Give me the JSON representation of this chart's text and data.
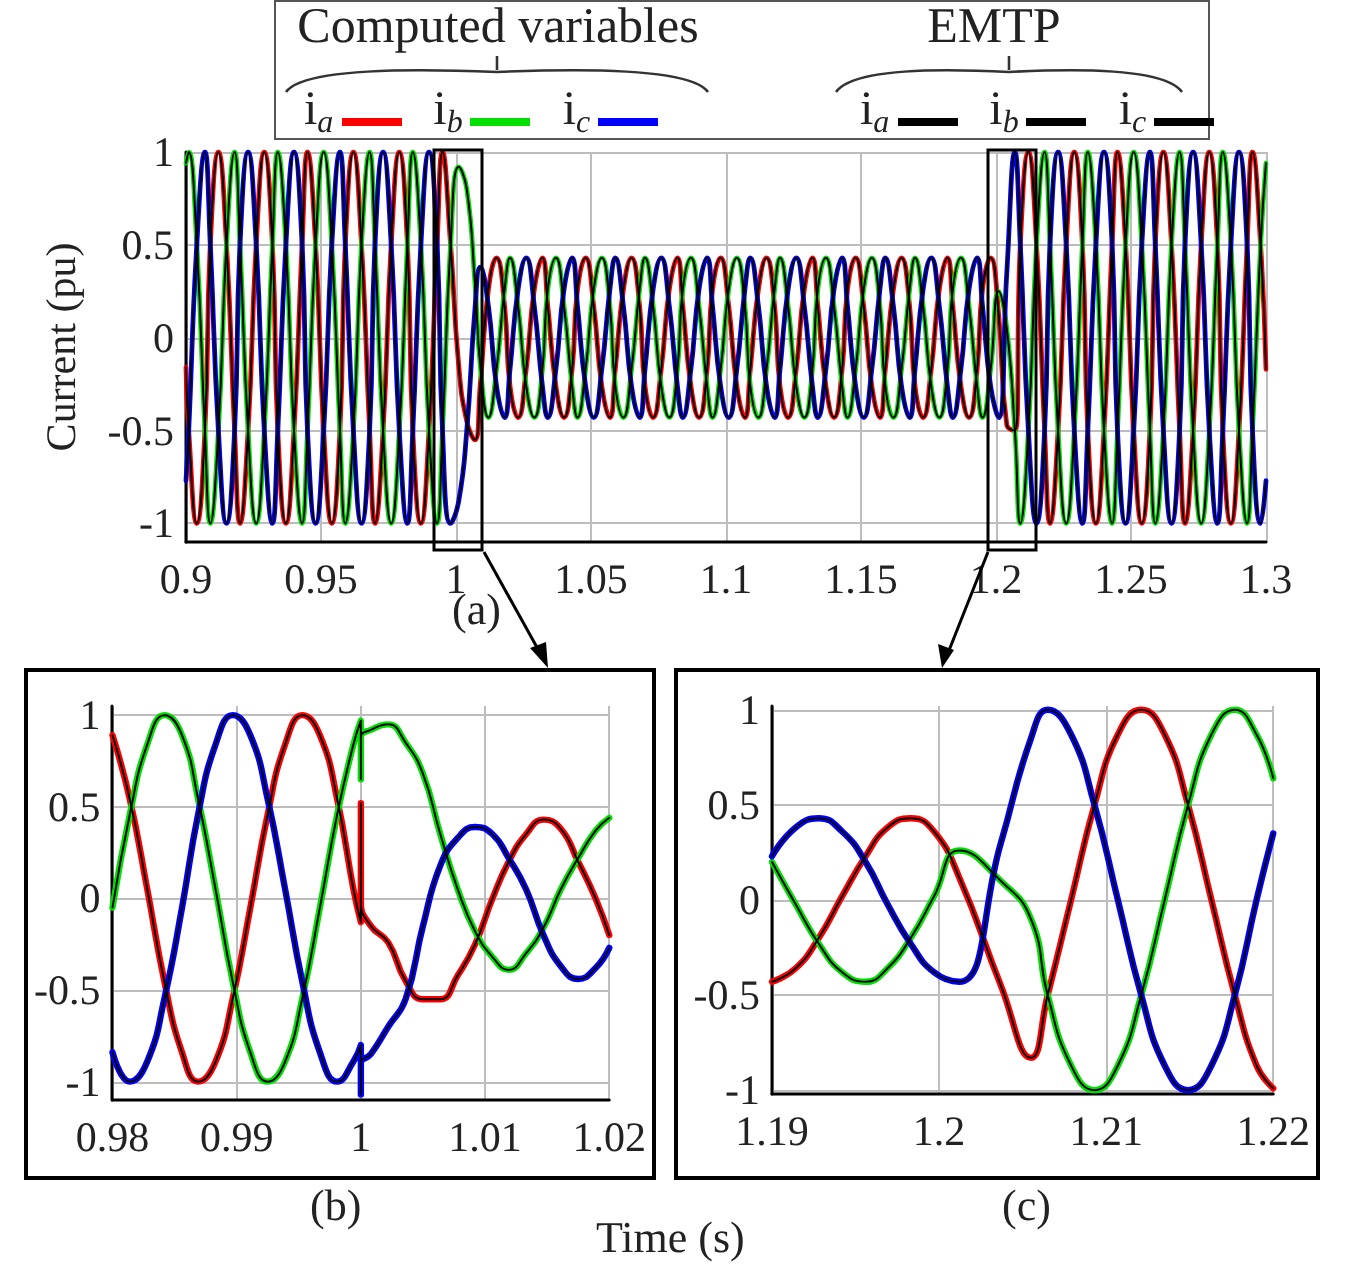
{
  "chart_data": [
    {
      "type": "line",
      "ylabel": "Current (pu)",
      "annotations": [
        "Computed variables",
        "EMTP",
        "(a)"
      ],
      "legend": "top",
      "grid": true,
      "xlim": [
        0.9,
        1.3
      ],
      "ylim": [
        -1.1,
        1
      ],
      "xticks": [
        0.9,
        0.95,
        1,
        1.05,
        1.1,
        1.15,
        1.2,
        1.25,
        1.3
      ],
      "yticks": [
        -1,
        -0.5,
        0,
        0.5,
        1
      ],
      "x": [
        0.9,
        0.901,
        0.904,
        0.907,
        0.909,
        0.912,
        0.915,
        0.918,
        0.92,
        0.923,
        0.926,
        0.929,
        0.932,
        0.934,
        0.937,
        0.94,
        0.943,
        0.945,
        0.948,
        0.951,
        0.954,
        0.957,
        0.959,
        0.962,
        0.965,
        0.968,
        0.97,
        0.973,
        0.976,
        0.979,
        0.982,
        0.984,
        0.987,
        0.99,
        0.993,
        0.995,
        0.998,
        1.001,
        1.004,
        1.007,
        1.009,
        1.012,
        1.015,
        1.018,
        1.02,
        1.023,
        1.026,
        1.029,
        1.032,
        1.034,
        1.037,
        1.04,
        1.043,
        1.045,
        1.048,
        1.051,
        1.054,
        1.057,
        1.059,
        1.062,
        1.065,
        1.068,
        1.07,
        1.073,
        1.076,
        1.079,
        1.082,
        1.084,
        1.087,
        1.09,
        1.093,
        1.095,
        1.098,
        1.101,
        1.104,
        1.107,
        1.109,
        1.112,
        1.115,
        1.118,
        1.12,
        1.123,
        1.126,
        1.129,
        1.132,
        1.134,
        1.137,
        1.14,
        1.143,
        1.145,
        1.148,
        1.151,
        1.154,
        1.157,
        1.159,
        1.162,
        1.165,
        1.168,
        1.17,
        1.173,
        1.176,
        1.179,
        1.182,
        1.184,
        1.187,
        1.19,
        1.193,
        1.195,
        1.198,
        1.201,
        1.204,
        1.207,
        1.209,
        1.212,
        1.215,
        1.218,
        1.22,
        1.223,
        1.226,
        1.229,
        1.232,
        1.234,
        1.237,
        1.24,
        1.243,
        1.245,
        1.248,
        1.251,
        1.254,
        1.257,
        1.259,
        1.262,
        1.265,
        1.268,
        1.27,
        1.273,
        1.276,
        1.279,
        1.282,
        1.284,
        1.287,
        1.29,
        1.293,
        1.295,
        1.298,
        1.3
      ],
      "series": [
        {
          "name": "i$_{a}$",
          "color": "#ff0000",
          "values": [
            -0.16,
            -0.5,
            -1,
            -0.5,
            0.5,
            1,
            0.5,
            -0.5,
            -1,
            -0.5,
            0.5,
            1,
            0.5,
            -0.5,
            -1,
            -0.5,
            0.5,
            1,
            0.5,
            -0.5,
            -1,
            -0.5,
            0.5,
            1,
            0.5,
            -0.5,
            -1,
            -0.5,
            0.5,
            1,
            0.5,
            -0.5,
            -1,
            -0.5,
            0.5,
            1,
            0.5,
            -0.15,
            -0.45,
            -0.55,
            -0.25,
            0.26,
            0.43,
            0.17,
            -0.26,
            -0.43,
            -0.17,
            0.26,
            0.43,
            0.17,
            -0.26,
            -0.43,
            -0.17,
            0.26,
            0.43,
            0.17,
            -0.26,
            -0.43,
            -0.17,
            0.26,
            0.43,
            0.17,
            -0.26,
            -0.43,
            -0.17,
            0.26,
            0.43,
            0.17,
            -0.26,
            -0.43,
            -0.17,
            0.26,
            0.43,
            0.17,
            -0.26,
            -0.43,
            -0.17,
            0.26,
            0.43,
            0.17,
            -0.26,
            -0.43,
            -0.17,
            0.26,
            0.43,
            0.17,
            -0.26,
            -0.43,
            -0.17,
            0.26,
            0.43,
            0.17,
            -0.26,
            -0.43,
            -0.17,
            0.26,
            0.43,
            0.17,
            -0.26,
            -0.43,
            -0.17,
            0.26,
            0.43,
            0.17,
            -0.26,
            -0.43,
            -0.17,
            0.26,
            0.43,
            0.12,
            -0.47,
            -0.5,
            0.5,
            1,
            0.5,
            -0.5,
            -1,
            -0.5,
            0.5,
            1,
            0.5,
            -0.5,
            -1,
            -0.5,
            0.5,
            1,
            0.5,
            -0.5,
            -1,
            -0.5,
            0.5,
            1,
            0.5,
            -0.5,
            -1,
            -0.5,
            0.5,
            1,
            0.5,
            -0.5,
            -1,
            -0.5,
            0.5,
            1,
            0.5,
            -0.17
          ]
        },
        {
          "name": "i$_{b}$",
          "color": "#00e000",
          "values": [
            0.94,
            1,
            0.5,
            -0.5,
            -1,
            -0.5,
            0.5,
            1,
            0.5,
            -0.5,
            -1,
            -0.5,
            0.5,
            1,
            0.5,
            -0.5,
            -1,
            -0.5,
            0.5,
            1,
            0.5,
            -0.5,
            -1,
            -0.5,
            0.5,
            1,
            0.5,
            -0.5,
            -1,
            -0.5,
            0.5,
            1,
            0.5,
            -0.5,
            -1,
            -0.5,
            0.5,
            0.92,
            0.8,
            0.3,
            -0.15,
            -0.43,
            -0.17,
            0.26,
            0.43,
            0.17,
            -0.26,
            -0.43,
            -0.17,
            0.26,
            0.43,
            0.17,
            -0.26,
            -0.43,
            -0.17,
            0.26,
            0.43,
            0.17,
            -0.26,
            -0.43,
            -0.17,
            0.26,
            0.43,
            0.17,
            -0.26,
            -0.43,
            -0.17,
            0.26,
            0.43,
            0.17,
            -0.26,
            -0.43,
            -0.17,
            0.26,
            0.43,
            0.17,
            -0.26,
            -0.43,
            -0.17,
            0.26,
            0.43,
            0.17,
            -0.26,
            -0.43,
            -0.17,
            0.26,
            0.43,
            0.17,
            -0.26,
            -0.43,
            -0.17,
            0.26,
            0.43,
            0.17,
            -0.26,
            -0.43,
            -0.17,
            0.26,
            0.43,
            0.17,
            -0.26,
            -0.43,
            -0.17,
            0.26,
            0.43,
            0.17,
            -0.26,
            -0.43,
            -0.17,
            0.25,
            0.05,
            -0.5,
            -1,
            -0.5,
            0.5,
            1,
            0.5,
            -0.5,
            -1,
            -0.5,
            0.5,
            1,
            0.5,
            -0.5,
            -1,
            -0.5,
            0.5,
            1,
            0.5,
            -0.5,
            -1,
            -0.5,
            0.5,
            1,
            0.5,
            -0.5,
            -1,
            -0.5,
            0.5,
            1,
            0.5,
            -0.5,
            -1,
            -0.5,
            0.5,
            0.94
          ]
        },
        {
          "name": "i$_{c}$",
          "color": "#0000ff",
          "values": [
            -0.77,
            -0.5,
            0.5,
            1,
            0.5,
            -0.5,
            -1,
            -0.5,
            0.5,
            1,
            0.5,
            -0.5,
            -1,
            -0.5,
            0.5,
            1,
            0.5,
            -0.5,
            -1,
            -0.5,
            0.5,
            1,
            0.5,
            -0.5,
            -1,
            -0.5,
            0.5,
            1,
            0.5,
            -0.5,
            -1,
            -0.5,
            0.5,
            1,
            0.5,
            -0.5,
            -1,
            -0.88,
            -0.5,
            0.15,
            0.38,
            0.17,
            -0.26,
            -0.43,
            -0.17,
            0.26,
            0.43,
            0.17,
            -0.26,
            -0.43,
            -0.17,
            0.26,
            0.43,
            0.17,
            -0.26,
            -0.43,
            -0.17,
            0.26,
            0.43,
            0.17,
            -0.26,
            -0.43,
            -0.17,
            0.26,
            0.43,
            0.17,
            -0.26,
            -0.43,
            -0.17,
            0.26,
            0.43,
            0.17,
            -0.26,
            -0.43,
            -0.17,
            0.26,
            0.43,
            0.17,
            -0.26,
            -0.43,
            -0.17,
            0.26,
            0.43,
            0.17,
            -0.26,
            -0.43,
            -0.17,
            0.26,
            0.43,
            0.17,
            -0.26,
            -0.43,
            -0.17,
            0.26,
            0.43,
            0.17,
            -0.26,
            -0.43,
            -0.17,
            0.26,
            0.43,
            0.17,
            -0.26,
            -0.43,
            -0.17,
            0.26,
            0.43,
            0.17,
            -0.26,
            -0.43,
            0.35,
            1,
            0.5,
            -0.5,
            -1,
            -0.5,
            0.5,
            1,
            0.5,
            -0.5,
            -1,
            -0.5,
            0.5,
            1,
            0.5,
            -0.5,
            -1,
            -0.5,
            0.5,
            1,
            0.5,
            -0.5,
            -1,
            -0.5,
            0.5,
            1,
            0.5,
            -0.5,
            -1,
            -0.5,
            0.5,
            1,
            0.5,
            -0.5,
            -1,
            -0.77
          ]
        },
        {
          "name": "i$_{a}$",
          "color": "#000000",
          "values": [
            -0.16,
            -0.5,
            -1,
            -0.5,
            0.5,
            1,
            0.5,
            -0.5,
            -1,
            -0.5,
            0.5,
            1,
            0.5,
            -0.5,
            -1,
            -0.5,
            0.5,
            1,
            0.5,
            -0.5,
            -1,
            -0.5,
            0.5,
            1,
            0.5,
            -0.5,
            -1,
            -0.5,
            0.5,
            1,
            0.5,
            -0.5,
            -1,
            -0.5,
            0.5,
            1,
            0.5,
            -0.15,
            -0.45,
            -0.55,
            -0.25,
            0.26,
            0.43,
            0.17,
            -0.26,
            -0.43,
            -0.17,
            0.26,
            0.43,
            0.17,
            -0.26,
            -0.43,
            -0.17,
            0.26,
            0.43,
            0.17,
            -0.26,
            -0.43,
            -0.17,
            0.26,
            0.43,
            0.17,
            -0.26,
            -0.43,
            -0.17,
            0.26,
            0.43,
            0.17,
            -0.26,
            -0.43,
            -0.17,
            0.26,
            0.43,
            0.17,
            -0.26,
            -0.43,
            -0.17,
            0.26,
            0.43,
            0.17,
            -0.26,
            -0.43,
            -0.17,
            0.26,
            0.43,
            0.17,
            -0.26,
            -0.43,
            -0.17,
            0.26,
            0.43,
            0.17,
            -0.26,
            -0.43,
            -0.17,
            0.26,
            0.43,
            0.17,
            -0.26,
            -0.43,
            -0.17,
            0.26,
            0.43,
            0.17,
            -0.26,
            -0.43,
            -0.17,
            0.26,
            0.43,
            0.12,
            -0.47,
            -0.5,
            0.5,
            1,
            0.5,
            -0.5,
            -1,
            -0.5,
            0.5,
            1,
            0.5,
            -0.5,
            -1,
            -0.5,
            0.5,
            1,
            0.5,
            -0.5,
            -1,
            -0.5,
            0.5,
            1,
            0.5,
            -0.5,
            -1,
            -0.5,
            0.5,
            1,
            0.5,
            -0.5,
            -1,
            -0.5,
            0.5,
            1,
            0.5,
            -0.17
          ]
        },
        {
          "name": "i$_{b}$",
          "color": "#000000",
          "values": [
            0.94,
            1,
            0.5,
            -0.5,
            -1,
            -0.5,
            0.5,
            1,
            0.5,
            -0.5,
            -1,
            -0.5,
            0.5,
            1,
            0.5,
            -0.5,
            -1,
            -0.5,
            0.5,
            1,
            0.5,
            -0.5,
            -1,
            -0.5,
            0.5,
            1,
            0.5,
            -0.5,
            -1,
            -0.5,
            0.5,
            1,
            0.5,
            -0.5,
            -1,
            -0.5,
            0.5,
            0.92,
            0.8,
            0.3,
            -0.15,
            -0.43,
            -0.17,
            0.26,
            0.43,
            0.17,
            -0.26,
            -0.43,
            -0.17,
            0.26,
            0.43,
            0.17,
            -0.26,
            -0.43,
            -0.17,
            0.26,
            0.43,
            0.17,
            -0.26,
            -0.43,
            -0.17,
            0.26,
            0.43,
            0.17,
            -0.26,
            -0.43,
            -0.17,
            0.26,
            0.43,
            0.17,
            -0.26,
            -0.43,
            -0.17,
            0.26,
            0.43,
            0.17,
            -0.26,
            -0.43,
            -0.17,
            0.26,
            0.43,
            0.17,
            -0.26,
            -0.43,
            -0.17,
            0.26,
            0.43,
            0.17,
            -0.26,
            -0.43,
            -0.17,
            0.26,
            0.43,
            0.17,
            -0.26,
            -0.43,
            -0.17,
            0.26,
            0.43,
            0.17,
            -0.26,
            -0.43,
            -0.17,
            0.26,
            0.43,
            0.17,
            -0.26,
            -0.43,
            -0.17,
            0.25,
            0.05,
            -0.5,
            -1,
            -0.5,
            0.5,
            1,
            0.5,
            -0.5,
            -1,
            -0.5,
            0.5,
            1,
            0.5,
            -0.5,
            -1,
            -0.5,
            0.5,
            1,
            0.5,
            -0.5,
            -1,
            -0.5,
            0.5,
            1,
            0.5,
            -0.5,
            -1,
            -0.5,
            0.5,
            1,
            0.5,
            -0.5,
            -1,
            -0.5,
            0.5,
            0.94
          ]
        },
        {
          "name": "i$_{c}$",
          "color": "#000000",
          "values": [
            -0.77,
            -0.5,
            0.5,
            1,
            0.5,
            -0.5,
            -1,
            -0.5,
            0.5,
            1,
            0.5,
            -0.5,
            -1,
            -0.5,
            0.5,
            1,
            0.5,
            -0.5,
            -1,
            -0.5,
            0.5,
            1,
            0.5,
            -0.5,
            -1,
            -0.5,
            0.5,
            1,
            0.5,
            -0.5,
            -1,
            -0.5,
            0.5,
            1,
            0.5,
            -0.5,
            -1,
            -0.88,
            -0.5,
            0.15,
            0.38,
            0.17,
            -0.26,
            -0.43,
            -0.17,
            0.26,
            0.43,
            0.17,
            -0.26,
            -0.43,
            -0.17,
            0.26,
            0.43,
            0.17,
            -0.26,
            -0.43,
            -0.17,
            0.26,
            0.43,
            0.17,
            -0.26,
            -0.43,
            -0.17,
            0.26,
            0.43,
            0.17,
            -0.26,
            -0.43,
            -0.17,
            0.26,
            0.43,
            0.17,
            -0.26,
            -0.43,
            -0.17,
            0.26,
            0.43,
            0.17,
            -0.26,
            -0.43,
            -0.17,
            0.26,
            0.43,
            0.17,
            -0.26,
            -0.43,
            -0.17,
            0.26,
            0.43,
            0.17,
            -0.26,
            -0.43,
            -0.17,
            0.26,
            0.43,
            0.17,
            -0.26,
            -0.43,
            -0.17,
            0.26,
            0.43,
            0.17,
            -0.26,
            -0.43,
            -0.17,
            0.26,
            0.43,
            0.17,
            -0.26,
            -0.43,
            0.35,
            1,
            0.5,
            -0.5,
            -1,
            -0.5,
            0.5,
            1,
            0.5,
            -0.5,
            -1,
            -0.5,
            0.5,
            1,
            0.5,
            -0.5,
            -1,
            -0.5,
            0.5,
            1,
            0.5,
            -0.5,
            -1,
            -0.5,
            0.5,
            1,
            0.5,
            -0.5,
            -1,
            -0.5,
            0.5,
            1,
            0.5,
            -0.5,
            -1,
            -0.77
          ]
        }
      ]
    },
    {
      "type": "line",
      "xlabel": "Time (s)",
      "annotations": [
        "(b)"
      ],
      "grid": true,
      "xlim": [
        0.98,
        1.02
      ],
      "ylim": [
        -1.1,
        1.05
      ],
      "xticks": [
        0.98,
        0.99,
        1,
        1.01,
        1.02
      ],
      "yticks": [
        -1,
        -0.5,
        0,
        0.5,
        1
      ],
      "x": [
        0.98,
        0.9814,
        0.9828,
        0.9842,
        0.9856,
        0.9869,
        0.9883,
        0.9897,
        0.9911,
        0.9925,
        0.9939,
        0.9953,
        0.9967,
        0.9981,
        0.9994,
        1,
        1,
        1,
        1.0008,
        1.0022,
        1.0036,
        1.005,
        1.0064,
        1.0078,
        1.0092,
        1.0106,
        1.0119,
        1.0133,
        1.0147,
        1.0161,
        1.0175,
        1.0189,
        1.02
      ],
      "series": [
        {
          "color": "#ff0000",
          "values": [
            0.89,
            0.54,
            0.05,
            -0.46,
            -0.84,
            -1,
            -0.89,
            -0.54,
            -0.05,
            0.46,
            0.84,
            1,
            0.89,
            0.54,
            0.05,
            -0.13,
            0.52,
            -0.02,
            -0.15,
            -0.24,
            -0.45,
            -0.55,
            -0.55,
            -0.42,
            -0.25,
            0,
            0.2,
            0.35,
            0.43,
            0.38,
            0.2,
            0,
            -0.2
          ]
        },
        {
          "color": "#00e000",
          "values": [
            -0.05,
            0.46,
            0.84,
            1,
            0.89,
            0.54,
            0.05,
            -0.46,
            -0.84,
            -1,
            -0.89,
            -0.54,
            -0.05,
            0.46,
            0.84,
            0.97,
            0.65,
            0.88,
            0.92,
            0.95,
            0.85,
            0.68,
            0.35,
            0.05,
            -0.18,
            -0.32,
            -0.39,
            -0.3,
            -0.16,
            0.05,
            0.22,
            0.37,
            0.44
          ]
        },
        {
          "color": "#0000ff",
          "values": [
            -0.84,
            -1,
            -0.89,
            -0.54,
            -0.05,
            0.46,
            0.84,
            1,
            0.89,
            0.54,
            0.05,
            -0.46,
            -0.84,
            -1,
            -0.89,
            -0.8,
            -1.07,
            -0.9,
            -0.85,
            -0.7,
            -0.55,
            -0.15,
            0.18,
            0.33,
            0.39,
            0.35,
            0.22,
            0.05,
            -0.2,
            -0.37,
            -0.44,
            -0.38,
            -0.27
          ]
        },
        {
          "color": "#000000",
          "values": [
            0.89,
            0.54,
            0.05,
            -0.46,
            -0.84,
            -1,
            -0.89,
            -0.54,
            -0.05,
            0.46,
            0.84,
            1,
            0.89,
            0.54,
            0.05,
            -0.13,
            0.52,
            -0.02,
            -0.15,
            -0.24,
            -0.45,
            -0.55,
            -0.55,
            -0.42,
            -0.25,
            0,
            0.2,
            0.35,
            0.43,
            0.38,
            0.2,
            0,
            -0.2
          ]
        },
        {
          "color": "#000000",
          "values": [
            -0.05,
            0.46,
            0.84,
            1,
            0.89,
            0.54,
            0.05,
            -0.46,
            -0.84,
            -1,
            -0.89,
            -0.54,
            -0.05,
            0.46,
            0.84,
            0.97,
            0.65,
            0.88,
            0.92,
            0.95,
            0.85,
            0.68,
            0.35,
            0.05,
            -0.18,
            -0.32,
            -0.39,
            -0.3,
            -0.16,
            0.05,
            0.22,
            0.37,
            0.44
          ]
        },
        {
          "color": "#000000",
          "values": [
            -0.84,
            -1,
            -0.89,
            -0.54,
            -0.05,
            0.46,
            0.84,
            1,
            0.89,
            0.54,
            0.05,
            -0.46,
            -0.84,
            -1,
            -0.89,
            -0.8,
            -1.07,
            -0.9,
            -0.85,
            -0.7,
            -0.55,
            -0.15,
            0.18,
            0.33,
            0.39,
            0.35,
            0.22,
            0.05,
            -0.2,
            -0.37,
            -0.44,
            -0.38,
            -0.27
          ]
        }
      ]
    },
    {
      "type": "line",
      "annotations": [
        "(c)"
      ],
      "grid": true,
      "xlim": [
        1.19,
        1.22
      ],
      "ylim": [
        -1.02,
        1.02
      ],
      "xticks": [
        1.19,
        1.2,
        1.21,
        1.22
      ],
      "yticks": [
        -1,
        -0.5,
        0,
        0.5,
        1
      ],
      "x": [
        1.19,
        1.1914,
        1.1928,
        1.1942,
        1.1956,
        1.1969,
        1.1983,
        1.1997,
        1.2012,
        1.2037,
        1.2055,
        1.2065,
        1.2079,
        1.2093,
        1.2107,
        1.2121,
        1.2135,
        1.2149,
        1.2163,
        1.2177,
        1.219,
        1.22
      ],
      "series": [
        {
          "color": "#ff0000",
          "values": [
            -0.43,
            -0.36,
            -0.2,
            0.02,
            0.23,
            0.38,
            0.43,
            0.36,
            0.12,
            -0.45,
            -0.83,
            -0.5,
            0,
            0.5,
            0.87,
            1,
            0.87,
            0.5,
            0,
            -0.5,
            -0.87,
            -0.99
          ]
        },
        {
          "color": "#00e000",
          "values": [
            0.2,
            -0.02,
            -0.23,
            -0.38,
            -0.43,
            -0.36,
            -0.2,
            0.02,
            0.26,
            0.1,
            -0.1,
            -0.5,
            -0.87,
            -1,
            -0.87,
            -0.5,
            0,
            0.5,
            0.87,
            1,
            0.87,
            0.64
          ]
        },
        {
          "color": "#0000ff",
          "values": [
            0.23,
            0.38,
            0.43,
            0.36,
            0.2,
            -0.02,
            -0.23,
            -0.38,
            -0.43,
            0.3,
            0.85,
            1,
            0.87,
            0.5,
            0,
            -0.5,
            -0.87,
            -1,
            -0.87,
            -0.5,
            0,
            0.35
          ]
        },
        {
          "color": "#000000",
          "values": [
            -0.43,
            -0.36,
            -0.2,
            0.02,
            0.23,
            0.38,
            0.43,
            0.36,
            0.12,
            -0.45,
            -0.83,
            -0.5,
            0,
            0.5,
            0.87,
            1,
            0.87,
            0.5,
            0,
            -0.5,
            -0.87,
            -0.99
          ]
        },
        {
          "color": "#000000",
          "values": [
            0.2,
            -0.02,
            -0.23,
            -0.38,
            -0.43,
            -0.36,
            -0.2,
            0.02,
            0.26,
            0.1,
            -0.1,
            -0.5,
            -0.87,
            -1,
            -0.87,
            -0.5,
            0,
            0.5,
            0.87,
            1,
            0.87,
            0.64
          ]
        },
        {
          "color": "#000000",
          "values": [
            0.23,
            0.38,
            0.43,
            0.36,
            0.2,
            -0.02,
            -0.23,
            -0.38,
            -0.43,
            0.3,
            0.85,
            1,
            0.87,
            0.5,
            0,
            -0.5,
            -0.87,
            -1,
            -0.87,
            -0.5,
            0,
            0.35
          ]
        }
      ]
    }
  ]
}
